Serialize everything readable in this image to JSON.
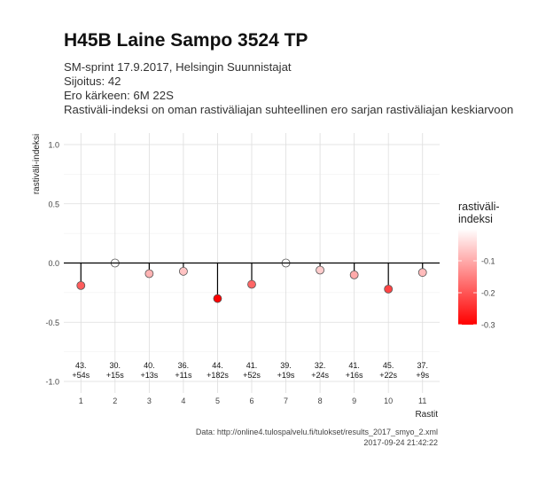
{
  "header": {
    "title": "H45B Laine Sampo 3524 TP",
    "subtitle_lines": [
      "SM-sprint 17.9.2017, Helsingin Suunnistajat",
      "Sijoitus: 42",
      "Ero kärkeen: 6M 22S",
      "Rastiväli-indeksi on oman rastiväliajan suhteellinen ero sarjan rastiväliajan keskiarvoon"
    ]
  },
  "caption": {
    "source": "Data: http://online4.tulospalvelu.fi/tulokset/results_2017_smyo_2.xml",
    "timestamp": "2017-09-24 21:42:22"
  },
  "chart_data": {
    "type": "scatter",
    "xlabel": "Rastit",
    "ylabel": "rastiväli-indeksi",
    "ylim": [
      -1.0,
      1.0
    ],
    "yticks": [
      "1.0",
      "0.5",
      "0.0",
      "-0.5",
      "-1.0"
    ],
    "categories": [
      "1",
      "2",
      "3",
      "4",
      "5",
      "6",
      "7",
      "8",
      "9",
      "10",
      "11"
    ],
    "values": [
      -0.19,
      0.0,
      -0.09,
      -0.07,
      -0.3,
      -0.18,
      0.0,
      -0.06,
      -0.1,
      -0.22,
      -0.08
    ],
    "labels": [
      [
        "43.",
        "+54s"
      ],
      [
        "30.",
        "+15s"
      ],
      [
        "40.",
        "+13s"
      ],
      [
        "36.",
        "+11s"
      ],
      [
        "44.",
        "+182s"
      ],
      [
        "41.",
        "+52s"
      ],
      [
        "39.",
        "+19s"
      ],
      [
        "32.",
        "+24s"
      ],
      [
        "41.",
        "+16s"
      ],
      [
        "45.",
        "+22s"
      ],
      [
        "37.",
        "+9s"
      ]
    ],
    "legend": {
      "title_lines": [
        "rastiväli-",
        "indeksi"
      ],
      "ticks": [
        "-0.1",
        "-0.2",
        "-0.3"
      ],
      "domain": [
        -0.3,
        0.0
      ],
      "color_high": "#ffffff",
      "color_low": "#ff0000"
    },
    "grid": true
  }
}
